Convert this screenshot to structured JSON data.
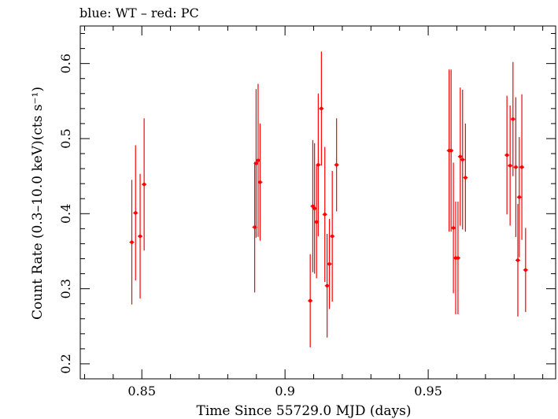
{
  "chart_data": {
    "type": "scatter",
    "title": "blue: WT – red: PC",
    "xlabel": "Time Since 55729.0 MJD (days)",
    "ylabel": "Count Rate (0.3–10.0 keV)(cts s⁻¹)",
    "xlim": [
      0.8285,
      0.9945
    ],
    "ylim": [
      0.18,
      0.65
    ],
    "xticks": [
      "0.85",
      "0.9",
      "0.95"
    ],
    "yticks": [
      "0.2",
      "0.3",
      "0.4",
      "0.5",
      "0.6"
    ],
    "xtick_values": [
      0.85,
      0.9,
      0.95
    ],
    "ytick_values": [
      0.2,
      0.3,
      0.4,
      0.5,
      0.6
    ],
    "grid": false,
    "series": [
      {
        "color": "#ff0000",
        "points": [
          {
            "x": 0.8465,
            "y": 0.362,
            "err": 0.083
          },
          {
            "x": 0.8478,
            "y": 0.401,
            "err": 0.09
          },
          {
            "x": 0.8494,
            "y": 0.37,
            "err": 0.083
          },
          {
            "x": 0.8508,
            "y": 0.439,
            "err": 0.088
          },
          {
            "x": 0.8894,
            "y": 0.382,
            "err": 0.087
          },
          {
            "x": 0.8899,
            "y": 0.467,
            "err": 0.099
          },
          {
            "x": 0.8906,
            "y": 0.471,
            "err": 0.102
          },
          {
            "x": 0.8913,
            "y": 0.442,
            "err": 0.078
          },
          {
            "x": 0.9088,
            "y": 0.284,
            "err": 0.062
          },
          {
            "x": 0.9097,
            "y": 0.41,
            "err": 0.088
          },
          {
            "x": 0.9103,
            "y": 0.407,
            "err": 0.087
          },
          {
            "x": 0.911,
            "y": 0.389,
            "err": 0.075
          },
          {
            "x": 0.9116,
            "y": 0.465,
            "err": 0.095
          },
          {
            "x": 0.9127,
            "y": 0.54,
            "err": 0.076
          },
          {
            "x": 0.9139,
            "y": 0.399,
            "err": 0.09
          },
          {
            "x": 0.9147,
            "y": 0.304,
            "err": 0.069
          },
          {
            "x": 0.9155,
            "y": 0.333,
            "err": 0.06
          },
          {
            "x": 0.9165,
            "y": 0.37,
            "err": 0.087
          },
          {
            "x": 0.918,
            "y": 0.465,
            "err": 0.062
          },
          {
            "x": 0.9573,
            "y": 0.484,
            "err": 0.108
          },
          {
            "x": 0.958,
            "y": 0.484,
            "err": 0.108
          },
          {
            "x": 0.9588,
            "y": 0.381,
            "err": 0.087
          },
          {
            "x": 0.9596,
            "y": 0.341,
            "err": 0.075
          },
          {
            "x": 0.9604,
            "y": 0.341,
            "err": 0.075
          },
          {
            "x": 0.9612,
            "y": 0.476,
            "err": 0.092
          },
          {
            "x": 0.962,
            "y": 0.472,
            "err": 0.093
          },
          {
            "x": 0.963,
            "y": 0.448,
            "err": 0.072
          },
          {
            "x": 0.9775,
            "y": 0.478,
            "err": 0.079
          },
          {
            "x": 0.9786,
            "y": 0.464,
            "err": 0.08
          },
          {
            "x": 0.9796,
            "y": 0.526,
            "err": 0.076
          },
          {
            "x": 0.9806,
            "y": 0.462,
            "err": 0.093
          },
          {
            "x": 0.9813,
            "y": 0.338,
            "err": 0.075
          },
          {
            "x": 0.9818,
            "y": 0.422,
            "err": 0.08
          },
          {
            "x": 0.9827,
            "y": 0.462,
            "err": 0.097
          },
          {
            "x": 0.984,
            "y": 0.325,
            "err": 0.056
          }
        ]
      }
    ]
  }
}
